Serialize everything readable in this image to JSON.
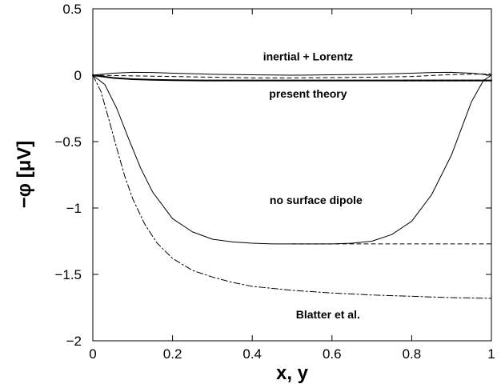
{
  "chart_data": {
    "type": "line",
    "xlabel": "x, y",
    "ylabel": "−φ [μV]",
    "xlim": [
      0,
      1
    ],
    "ylim": [
      -2,
      0.5
    ],
    "xticks": [
      {
        "v": 0,
        "label": "0"
      },
      {
        "v": 0.2,
        "label": "0.2"
      },
      {
        "v": 0.4,
        "label": "0.4"
      },
      {
        "v": 0.6,
        "label": "0.6"
      },
      {
        "v": 0.8,
        "label": "0.8"
      },
      {
        "v": 1,
        "label": "1"
      }
    ],
    "yticks": [
      {
        "v": 0.5,
        "label": "0.5"
      },
      {
        "v": 0,
        "label": "0"
      },
      {
        "v": -0.5,
        "label": "−0.5"
      },
      {
        "v": -1,
        "label": "−1"
      },
      {
        "v": -1.5,
        "label": "−1.5"
      },
      {
        "v": -2,
        "label": "−2"
      }
    ],
    "grid": false,
    "annotations": [
      {
        "text": "inertial + Lorentz",
        "x": 0.54,
        "y": 0.11
      },
      {
        "text": "present theory",
        "x": 0.54,
        "y": -0.17
      },
      {
        "text": "no surface dipole",
        "x": 0.56,
        "y": -0.97
      },
      {
        "text": "Blatter et al.",
        "x": 0.59,
        "y": -1.83
      }
    ],
    "series": [
      {
        "style": "solid",
        "width": 1.0,
        "x": [
          0,
          0.03,
          0.06,
          0.09,
          0.12,
          0.15,
          0.2,
          0.25,
          0.3,
          0.35,
          0.4,
          0.45,
          0.5,
          0.55,
          0.6,
          0.65,
          0.7,
          0.75,
          0.8,
          0.85,
          0.9,
          0.95,
          0.98,
          1.0
        ],
        "y": [
          0,
          -0.07,
          -0.25,
          -0.48,
          -0.7,
          -0.88,
          -1.08,
          -1.18,
          -1.235,
          -1.255,
          -1.265,
          -1.27,
          -1.27,
          -1.27,
          -1.27,
          -1.265,
          -1.25,
          -1.2,
          -1.1,
          -0.9,
          -0.6,
          -0.2,
          -0.04,
          0
        ]
      },
      {
        "style": "dashed",
        "width": 1.0,
        "x": [
          0.5,
          0.6,
          0.7,
          0.8,
          0.9,
          1.0
        ],
        "y": [
          -1.27,
          -1.27,
          -1.27,
          -1.27,
          -1.27,
          -1.27
        ]
      },
      {
        "style": "dashdot",
        "width": 1.0,
        "x": [
          0,
          0.02,
          0.04,
          0.06,
          0.08,
          0.1,
          0.13,
          0.16,
          0.2,
          0.25,
          0.3,
          0.35,
          0.4,
          0.5,
          0.6,
          0.7,
          0.8,
          0.9,
          1.0
        ],
        "y": [
          0,
          -0.12,
          -0.33,
          -0.55,
          -0.76,
          -0.93,
          -1.12,
          -1.26,
          -1.38,
          -1.47,
          -1.52,
          -1.56,
          -1.59,
          -1.62,
          -1.64,
          -1.655,
          -1.665,
          -1.675,
          -1.68
        ]
      },
      {
        "style": "solid",
        "width": 2.0,
        "x": [
          0,
          0.05,
          0.1,
          0.15,
          0.2,
          0.3,
          0.4,
          0.5,
          0.6,
          0.7,
          0.8,
          0.9,
          1.0
        ],
        "y": [
          0,
          -0.02,
          -0.03,
          -0.035,
          -0.038,
          -0.04,
          -0.04,
          -0.04,
          -0.04,
          -0.04,
          -0.04,
          -0.04,
          -0.04
        ]
      },
      {
        "style": "dashed",
        "width": 2.0,
        "x": [
          0.78,
          0.85,
          0.92,
          1.0
        ],
        "y": [
          -0.04,
          -0.04,
          -0.04,
          -0.04
        ]
      },
      {
        "style": "solid",
        "width": 1.0,
        "x": [
          0,
          0.05,
          0.1,
          0.15,
          0.2,
          0.3,
          0.4,
          0.5,
          0.6,
          0.7,
          0.8,
          0.85,
          0.9,
          0.95,
          1.0
        ],
        "y": [
          0,
          0.015,
          0.022,
          0.02,
          0.015,
          0.007,
          0.003,
          0.0,
          0.003,
          0.007,
          0.015,
          0.02,
          0.022,
          0.015,
          0
        ]
      },
      {
        "style": "dashed",
        "width": 1.0,
        "x": [
          0,
          0.1,
          0.2,
          0.3,
          0.4,
          0.5,
          0.6,
          0.7,
          0.8,
          0.9,
          1.0
        ],
        "y": [
          0,
          -0.005,
          -0.01,
          -0.015,
          -0.02,
          -0.02,
          -0.018,
          -0.015,
          -0.01,
          0.005,
          0.01
        ]
      }
    ]
  }
}
